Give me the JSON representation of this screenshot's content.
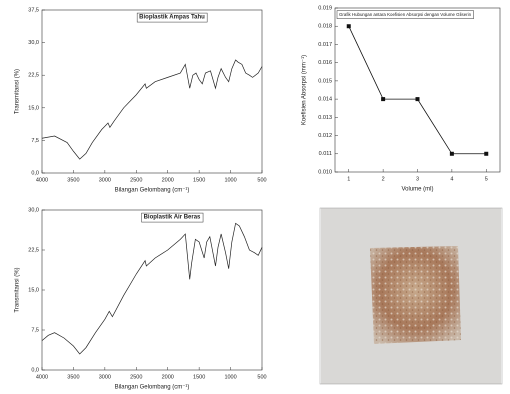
{
  "chart_data": [
    {
      "type": "line",
      "title": "Bioplastik Ampas Tahu",
      "xlabel": "Bilangan Gelombang (cm⁻¹)",
      "ylabel": "Transmitansi (%)",
      "x": [
        4000,
        3800,
        3600,
        3500,
        3400,
        3300,
        3200,
        3050,
        2950,
        2920,
        2850,
        2700,
        2500,
        2360,
        2340,
        2200,
        2000,
        1800,
        1720,
        1650,
        1600,
        1550,
        1500,
        1450,
        1400,
        1320,
        1240,
        1200,
        1150,
        1080,
        1030,
        980,
        920,
        880,
        820,
        760,
        700,
        650,
        560,
        500
      ],
      "values": [
        8,
        8.5,
        7,
        5,
        3.2,
        4.5,
        7,
        10,
        11.5,
        10.5,
        12,
        15,
        18,
        20.5,
        19.5,
        21,
        22,
        23,
        25,
        19.5,
        22.5,
        23,
        21.5,
        20.5,
        23,
        23.5,
        19.5,
        22,
        24,
        22,
        21,
        24,
        26,
        25.5,
        25,
        23,
        22.5,
        22,
        23,
        24.5
      ],
      "color": "#222222",
      "xlim": [
        4000,
        500
      ],
      "ylim": [
        0,
        37.5
      ],
      "xticks": [
        4000,
        3500,
        3000,
        2500,
        2000,
        1500,
        1000,
        500
      ],
      "yticks": [
        {
          "value": 0,
          "label": "0,0"
        },
        {
          "value": 7.5,
          "label": "7,5"
        },
        {
          "value": 15,
          "label": "15,0"
        },
        {
          "value": 22.5,
          "label": "22,5"
        },
        {
          "value": 30,
          "label": "30,0"
        },
        {
          "value": 37.5,
          "label": "37,5"
        }
      ]
    },
    {
      "type": "line",
      "title": "Grafik Hubungan antara Koefisien Absorpsi dengan Volume Gliserin",
      "xlabel": "Volume (ml)",
      "ylabel": "Koefisien Absorpsi (mm⁻¹)",
      "x": [
        1,
        2,
        3,
        4,
        5
      ],
      "values": [
        0.018,
        0.014,
        0.014,
        0.011,
        0.011
      ],
      "color": "#111111",
      "marker": "square",
      "xlim": [
        0.6,
        5.4
      ],
      "ylim": [
        0.01,
        0.019
      ],
      "xticks": [
        1,
        2,
        3,
        4,
        5
      ],
      "yticks": [
        {
          "value": 0.01,
          "label": "0.010"
        },
        {
          "value": 0.011,
          "label": "0.011"
        },
        {
          "value": 0.012,
          "label": "0.012"
        },
        {
          "value": 0.013,
          "label": "0.013"
        },
        {
          "value": 0.014,
          "label": "0.014"
        },
        {
          "value": 0.015,
          "label": "0.015"
        },
        {
          "value": 0.016,
          "label": "0.016"
        },
        {
          "value": 0.017,
          "label": "0.017"
        },
        {
          "value": 0.018,
          "label": "0.018"
        },
        {
          "value": 0.019,
          "label": "0.019"
        }
      ]
    },
    {
      "type": "line",
      "title": "Bioplastik Air Beras",
      "xlabel": "Bilangan Gelombang (cm⁻¹)",
      "ylabel": "Transmitansi (%)",
      "x": [
        4000,
        3900,
        3800,
        3650,
        3500,
        3400,
        3300,
        3150,
        3000,
        2930,
        2880,
        2700,
        2500,
        2360,
        2340,
        2200,
        2000,
        1800,
        1720,
        1650,
        1620,
        1560,
        1500,
        1420,
        1380,
        1330,
        1240,
        1200,
        1150,
        1080,
        1030,
        980,
        920,
        860,
        780,
        700,
        620,
        560,
        500
      ],
      "values": [
        5.5,
        6.5,
        7,
        6,
        4.5,
        3,
        4.2,
        7,
        9.5,
        11,
        10,
        14,
        18,
        20.5,
        19.5,
        21,
        22.5,
        24.5,
        25.5,
        17,
        20,
        24.5,
        24,
        21,
        24,
        25,
        19.5,
        23,
        25.5,
        22,
        19,
        24,
        27.5,
        27,
        25,
        22.5,
        22,
        21.5,
        23
      ],
      "color": "#222222",
      "xlim": [
        4000,
        500
      ],
      "ylim": [
        0,
        30
      ],
      "xticks": [
        4000,
        3500,
        3000,
        2500,
        2000,
        1500,
        1000,
        500
      ],
      "yticks": [
        {
          "value": 0,
          "label": "0,0"
        },
        {
          "value": 7.5,
          "label": "7,5"
        },
        {
          "value": 15,
          "label": "15,0"
        },
        {
          "value": 22.5,
          "label": "22,5"
        },
        {
          "value": 30,
          "label": "30,0"
        }
      ]
    }
  ]
}
